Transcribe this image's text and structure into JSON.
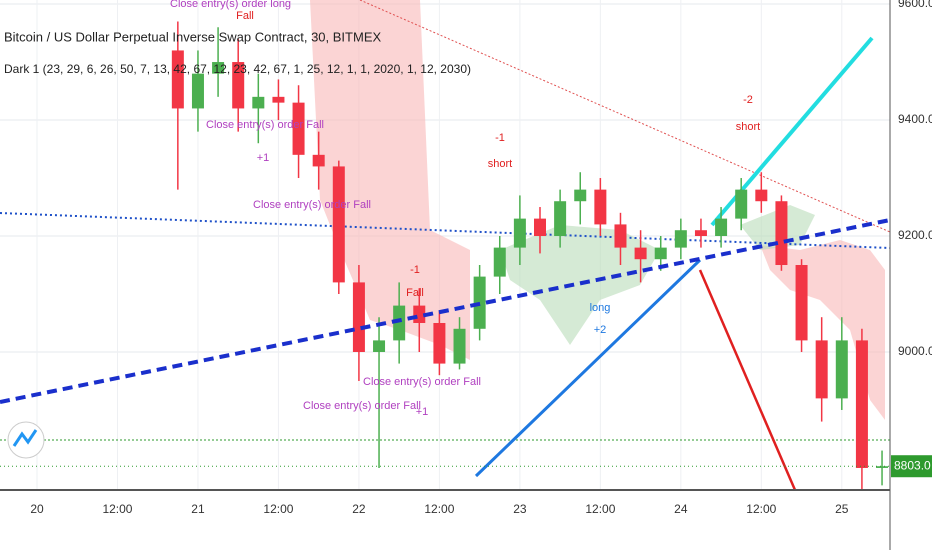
{
  "chart_data": {
    "type": "candlestick",
    "title": "Bitcoin / US Dollar Perpetual Inverse Swap Contract, 30, BITMEX",
    "subtitle": "Dark 1 (23, 29, 6, 26, 50, 7, 13, 42, 67, 12, 23, 42, 67, 1, 25, 12, 1, 1, 2020, 1, 12, 2030)",
    "categories": [
      null,
      "20",
      null,
      null,
      null,
      "12:00",
      null,
      null,
      null,
      "21",
      null,
      null,
      null,
      "12:00",
      null,
      null,
      null,
      "22",
      null,
      null,
      null,
      "12:00",
      null,
      null,
      null,
      "23",
      null,
      null,
      null,
      "12:00",
      null,
      null,
      null,
      "24",
      null,
      null,
      null,
      "12:00",
      null,
      null,
      null,
      "25",
      null,
      null
    ],
    "open": [
      null,
      null,
      null,
      null,
      null,
      null,
      null,
      null,
      9520,
      9420,
      9480,
      9500,
      9420,
      9440,
      9430,
      9340,
      9320,
      9120,
      9000,
      9020,
      9080,
      9050,
      8980,
      9040,
      9130,
      9180,
      9230,
      9200,
      9260,
      9280,
      9220,
      9180,
      9160,
      9180,
      9210,
      9200,
      9230,
      9280,
      9260,
      9150,
      9020,
      8920,
      9020,
      8800
    ],
    "high": [
      null,
      null,
      null,
      null,
      null,
      null,
      null,
      null,
      9570,
      9520,
      9560,
      9540,
      9480,
      9470,
      9460,
      9380,
      9330,
      9150,
      9060,
      9120,
      9110,
      9070,
      9060,
      9150,
      9200,
      9270,
      9250,
      9280,
      9310,
      9300,
      9240,
      9210,
      9200,
      9230,
      9230,
      9250,
      9300,
      9310,
      9270,
      9160,
      9060,
      9060,
      9040,
      8830
    ],
    "low": [
      null,
      null,
      null,
      null,
      null,
      null,
      null,
      null,
      9280,
      9380,
      9440,
      9380,
      9360,
      9400,
      9300,
      9280,
      9100,
      8950,
      8800,
      8980,
      9000,
      8960,
      8970,
      9020,
      9100,
      9150,
      9170,
      9180,
      9220,
      9200,
      9150,
      9120,
      9140,
      9160,
      9180,
      9180,
      9210,
      9240,
      9140,
      9000,
      8880,
      8900,
      8760,
      8770
    ],
    "close": [
      null,
      null,
      null,
      null,
      null,
      null,
      null,
      null,
      9420,
      9480,
      9500,
      9420,
      9440,
      9430,
      9340,
      9320,
      9120,
      9000,
      9020,
      9080,
      9050,
      8980,
      9040,
      9130,
      9180,
      9230,
      9200,
      9260,
      9280,
      9220,
      9180,
      9160,
      9180,
      9210,
      9200,
      9230,
      9280,
      9260,
      9150,
      9020,
      8920,
      9020,
      8800,
      8803
    ],
    "up_color": "#4caf50",
    "down_color": "#f23645",
    "ylim": [
      8762,
      9607
    ],
    "yticks": [
      {
        "value": 9000,
        "label": "9000.0"
      },
      {
        "value": 9200,
        "label": "9200.0"
      },
      {
        "value": 9400,
        "label": "9400.0"
      },
      {
        "value": 9600,
        "label": "9600.0"
      }
    ],
    "last_price": {
      "value": 8803,
      "label": "8803.0"
    },
    "grid": true,
    "annotations": [
      "Close entry(s) order long",
      "Fall",
      "Close entry(s) order Fall",
      "+1",
      "Close entry(s) order Fall",
      "-1",
      "short",
      "-1",
      "Fall",
      "long",
      "+2",
      "Close entry(s) order Fall",
      "+1",
      "Close entry(s) order Fall",
      "-2",
      "short"
    ]
  }
}
